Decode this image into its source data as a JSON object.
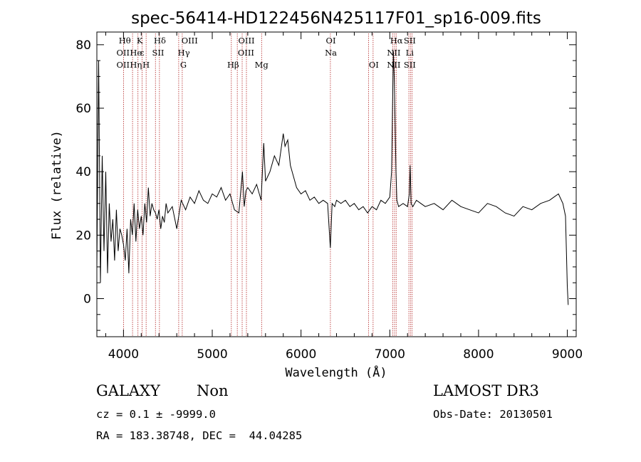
{
  "chart_data": {
    "type": "line",
    "title": "spec-56414-HD122456N425117F01_sp16-009.fits",
    "xlabel": "Wavelength (Å)",
    "ylabel": "Flux (relative)",
    "xlim": [
      3700,
      9100
    ],
    "ylim": [
      -12,
      84
    ],
    "x_ticks": [
      4000,
      5000,
      6000,
      7000,
      8000,
      9000
    ],
    "y_ticks": [
      0,
      20,
      40,
      60,
      80
    ],
    "x_ticks_label": [
      "4000",
      "5000",
      "6000",
      "7000",
      "8000",
      "9000"
    ],
    "y_ticks_label": [
      "0",
      "20",
      "40",
      "60",
      "80"
    ],
    "grid": false,
    "line_color": "#000000",
    "marker_color": "#b22222",
    "series": [
      {
        "x": [
          3700,
          3720,
          3740,
          3760,
          3780,
          3800,
          3820,
          3840,
          3860,
          3880,
          3900,
          3920,
          3940,
          3960,
          3980,
          4000,
          4020,
          4040,
          4060,
          4080,
          4100,
          4120,
          4140,
          4160,
          4180,
          4200,
          4220,
          4240,
          4260,
          4280,
          4300,
          4320,
          4340,
          4360,
          4380,
          4400,
          4420,
          4440,
          4460,
          4480,
          4500,
          4550,
          4600,
          4650,
          4700,
          4750,
          4800,
          4850,
          4900,
          4950,
          5000,
          5050,
          5100,
          5150,
          5200,
          5250,
          5300,
          5340,
          5360,
          5380,
          5400,
          5450,
          5500,
          5550,
          5580,
          5600,
          5650,
          5700,
          5750,
          5800,
          5820,
          5850,
          5880,
          5900,
          5950,
          6000,
          6050,
          6100,
          6150,
          6200,
          6250,
          6300,
          6330,
          6350,
          6380,
          6400,
          6450,
          6500,
          6550,
          6600,
          6650,
          6700,
          6750,
          6800,
          6850,
          6900,
          6950,
          7000,
          7020,
          7040,
          7050,
          7060,
          7070,
          7080,
          7100,
          7150,
          7200,
          7220,
          7230,
          7240,
          7260,
          7300,
          7350,
          7400,
          7500,
          7600,
          7700,
          7800,
          7900,
          8000,
          8100,
          8200,
          8300,
          8400,
          8500,
          8600,
          8700,
          8800,
          8850,
          8900,
          8950,
          8980,
          9000,
          9010
        ],
        "values": [
          10,
          75,
          5,
          45,
          15,
          40,
          8,
          30,
          18,
          25,
          12,
          28,
          15,
          22,
          20,
          17,
          12,
          22,
          8,
          25,
          20,
          30,
          18,
          28,
          22,
          26,
          20,
          30,
          24,
          35,
          26,
          30,
          28,
          27,
          25,
          28,
          22,
          26,
          24,
          30,
          27,
          29,
          22,
          31,
          28,
          32,
          30,
          34,
          31,
          30,
          33,
          32,
          35,
          31,
          33,
          28,
          27,
          40,
          29,
          34,
          35,
          33,
          36,
          31,
          49,
          37,
          40,
          45,
          42,
          52,
          48,
          50,
          42,
          40,
          35,
          33,
          34,
          31,
          32,
          30,
          31,
          30,
          16,
          30,
          29,
          31,
          30,
          31,
          29,
          30,
          28,
          29,
          27,
          29,
          28,
          31,
          30,
          32,
          40,
          78,
          70,
          55,
          40,
          31,
          29,
          30,
          29,
          33,
          42,
          30,
          29,
          31,
          30,
          29,
          30,
          28,
          31,
          29,
          28,
          27,
          30,
          29,
          27,
          26,
          29,
          28,
          30,
          31,
          32,
          33,
          30,
          26,
          4,
          -2
        ]
      }
    ],
    "annotations": [
      {
        "row": 1,
        "text": "Hθ",
        "x": 3797
      },
      {
        "row": 1,
        "text": "K",
        "x": 3933
      },
      {
        "row": 1,
        "text": "Hδ",
        "x": 4101
      },
      {
        "row": 1,
        "text": "OIII",
        "x": 4363
      },
      {
        "row": 1,
        "text": "OIII",
        "x": 5007
      },
      {
        "row": 1,
        "text": "OI",
        "x": 6300
      },
      {
        "row": 1,
        "text": "Hα",
        "x": 6563
      },
      {
        "row": 1,
        "text": "SII",
        "x": 6716
      },
      {
        "row": 2,
        "text": "OII",
        "x": 3727
      },
      {
        "row": 2,
        "text": "He",
        "x": 3889
      },
      {
        "row": 2,
        "text": "ε",
        "x": 3970
      },
      {
        "row": 2,
        "text": "SII",
        "x": 4069
      },
      {
        "row": 2,
        "text": "Hγ",
        "x": 4340
      },
      {
        "row": 2,
        "text": "OIII",
        "x": 4959
      },
      {
        "row": 2,
        "text": "Na",
        "x": 5893
      },
      {
        "row": 2,
        "text": "NII",
        "x": 6548
      },
      {
        "row": 2,
        "text": "Li",
        "x": 6708
      },
      {
        "row": 3,
        "text": "OII",
        "x": 3727
      },
      {
        "row": 3,
        "text": "Hη",
        "x": 3835
      },
      {
        "row": 3,
        "text": "H",
        "x": 3969
      },
      {
        "row": 3,
        "text": "G",
        "x": 4304
      },
      {
        "row": 3,
        "text": "Hβ",
        "x": 4861
      },
      {
        "row": 3,
        "text": "Mg",
        "x": 5175
      },
      {
        "row": 3,
        "text": "OI",
        "x": 6364
      },
      {
        "row": 3,
        "text": "NII",
        "x": 6583
      },
      {
        "row": 3,
        "text": "SII",
        "x": 6731
      }
    ],
    "marker_lines": [
      4000,
      4102,
      4163,
      4210,
      4255,
      4360,
      4405,
      4622,
      4662,
      5215,
      5282,
      5337,
      5385,
      5556,
      6331,
      6760,
      6812,
      7034,
      7054,
      7072,
      7215,
      7233,
      7250
    ]
  },
  "info": {
    "class_label": "GALAXY",
    "subclass_label": "Non",
    "survey": "LAMOST DR3",
    "cz_line": "cz = 0.1 ± -9999.0",
    "obs_date": "Obs-Date: 20130501",
    "coords": "RA = 183.38748, DEC =  44.04285"
  }
}
